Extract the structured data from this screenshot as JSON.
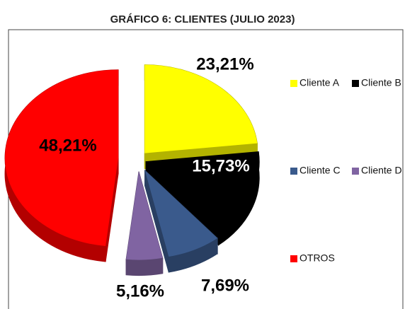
{
  "chart_data": {
    "type": "pie3d",
    "title": "GRÁFICO 6: CLIENTES (JULIO 2023)",
    "categories": [
      "Cliente A",
      "Cliente B",
      "Cliente C",
      "Cliente D",
      "OTROS"
    ],
    "values": [
      23.21,
      15.73,
      7.69,
      5.16,
      48.21
    ],
    "value_labels": [
      "23,21%",
      "15,73%",
      "7,69%",
      "5,16%",
      "48,21%"
    ],
    "colors": [
      "#ffff00",
      "#000000",
      "#3a5a8c",
      "#8064a2",
      "#ff0000"
    ],
    "legend": "right"
  }
}
